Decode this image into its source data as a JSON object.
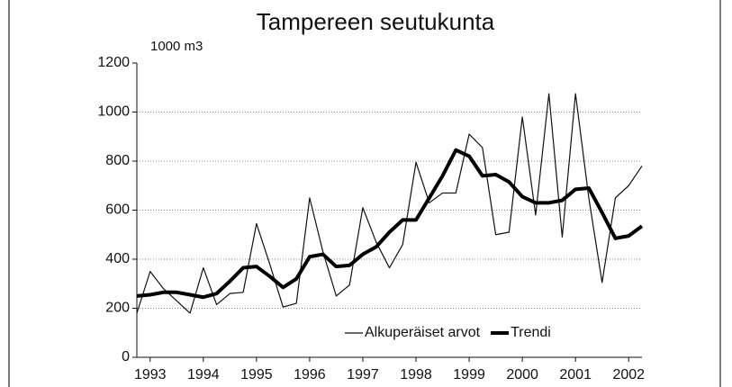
{
  "chart_data": {
    "type": "line",
    "title": "Tampereen seutukunta",
    "y_label": "1000 m3",
    "x": [
      1992.75,
      1993,
      1993.25,
      1993.5,
      1993.75,
      1994,
      1994.25,
      1994.5,
      1994.75,
      1995,
      1995.25,
      1995.5,
      1995.75,
      1996,
      1996.25,
      1996.5,
      1996.75,
      1997,
      1997.25,
      1997.5,
      1997.75,
      1998,
      1998.25,
      1998.5,
      1998.75,
      1999,
      1999.25,
      1999.5,
      1999.75,
      2000,
      2000.25,
      2000.5,
      2000.75,
      2001,
      2001.25,
      2001.5,
      2001.75,
      2002,
      2002.25
    ],
    "series": [
      {
        "name": "Alkuperäiset arvot",
        "color": "#111111",
        "width": 1.2,
        "values": [
          180,
          350,
          280,
          230,
          180,
          365,
          215,
          260,
          265,
          545,
          380,
          205,
          220,
          650,
          430,
          250,
          295,
          610,
          470,
          365,
          460,
          795,
          630,
          670,
          670,
          910,
          855,
          500,
          510,
          980,
          580,
          1075,
          490,
          1075,
          650,
          305,
          650,
          700,
          780
        ]
      },
      {
        "name": "Trendi",
        "color": "#000000",
        "width": 4,
        "values": [
          250,
          255,
          265,
          265,
          255,
          245,
          260,
          310,
          365,
          370,
          330,
          285,
          320,
          410,
          420,
          370,
          375,
          420,
          450,
          510,
          560,
          560,
          650,
          740,
          845,
          820,
          740,
          745,
          715,
          655,
          630,
          630,
          640,
          685,
          690,
          590,
          485,
          495,
          535
        ]
      }
    ],
    "xlim": [
      1992.75,
      2002.25
    ],
    "xticks": [
      1993,
      1994,
      1995,
      1996,
      1997,
      1998,
      1999,
      2000,
      2001,
      2002
    ],
    "ylim": [
      0,
      1200
    ],
    "yticks": [
      0,
      200,
      400,
      600,
      800,
      1000,
      1200
    ],
    "grid": true,
    "legend": "bottom"
  }
}
